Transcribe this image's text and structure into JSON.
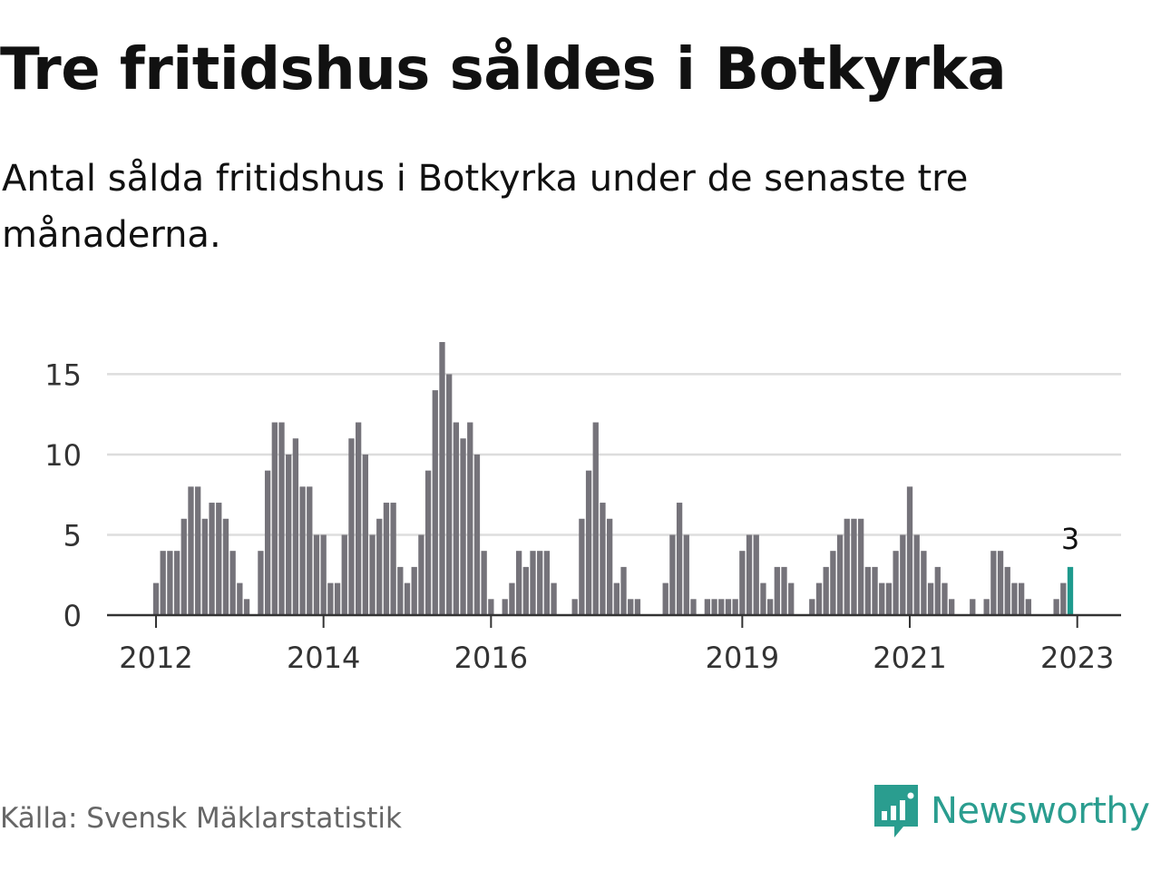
{
  "header": {
    "title": "Tre fritidshus såldes i Botkyrka",
    "subtitle": "Antal sålda fritidshus i Botkyrka under de senaste tre månaderna."
  },
  "footer": {
    "source": "Källa: Svensk Mäklarstatistik",
    "brand": "Newsworthy",
    "brand_icon": "newsworthy-logo-icon"
  },
  "colors": {
    "bar": "#75737a",
    "highlight": "#1f9a8d",
    "grid": "#dddddd",
    "axis": "#333333",
    "brand": "#2a9d8f"
  },
  "chart_data": {
    "type": "bar",
    "ylim": [
      0,
      17
    ],
    "yticks": [
      0,
      5,
      10,
      15
    ],
    "xticks": [
      {
        "label": "2012",
        "index": 0
      },
      {
        "label": "2014",
        "index": 24
      },
      {
        "label": "2016",
        "index": 48
      },
      {
        "label": "2019",
        "index": 84
      },
      {
        "label": "2021",
        "index": 108
      },
      {
        "label": "2023",
        "index": 132
      }
    ],
    "start": "2012-01",
    "values": [
      2,
      4,
      4,
      4,
      6,
      8,
      8,
      6,
      7,
      7,
      6,
      4,
      2,
      1,
      0,
      4,
      9,
      12,
      12,
      10,
      11,
      8,
      8,
      5,
      5,
      2,
      2,
      5,
      11,
      12,
      10,
      5,
      6,
      7,
      7,
      3,
      2,
      3,
      5,
      9,
      14,
      17,
      15,
      12,
      11,
      12,
      10,
      4,
      1,
      0,
      1,
      2,
      4,
      3,
      4,
      4,
      4,
      2,
      0,
      0,
      1,
      6,
      9,
      12,
      7,
      6,
      2,
      3,
      1,
      1,
      0,
      0,
      0,
      2,
      5,
      7,
      5,
      1,
      0,
      1,
      1,
      1,
      1,
      1,
      4,
      5,
      5,
      2,
      1,
      3,
      3,
      2,
      0,
      0,
      1,
      2,
      3,
      4,
      5,
      6,
      6,
      6,
      3,
      3,
      2,
      2,
      4,
      5,
      8,
      5,
      4,
      2,
      3,
      2,
      1,
      0,
      0,
      1,
      0,
      1,
      4,
      4,
      3,
      2,
      2,
      1,
      0,
      0,
      0,
      1,
      2,
      3
    ],
    "highlight_label": "3"
  }
}
